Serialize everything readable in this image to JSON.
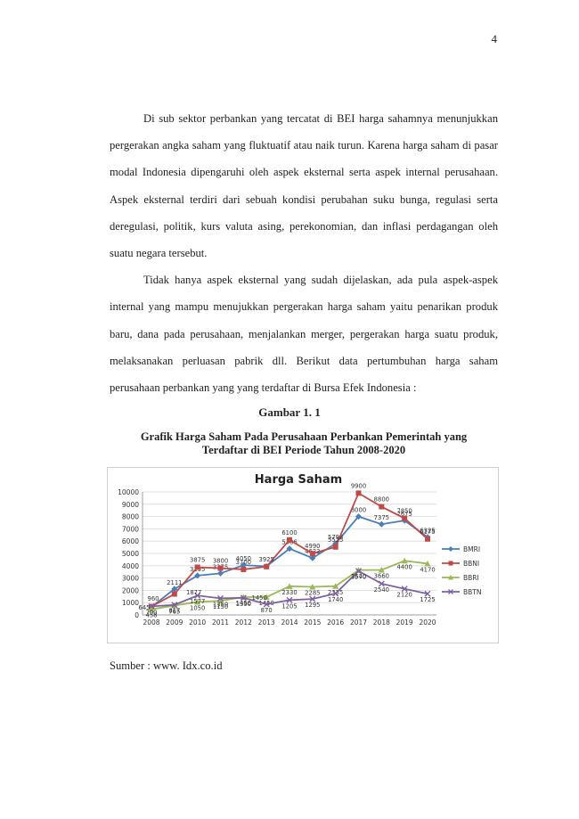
{
  "page_number": "4",
  "paragraphs": [
    "Di sub sektor perbankan yang tercatat di BEI harga sahamnya menunjukkan pergerakan angka saham yang fluktuatif atau naik turun. Karena harga saham di pasar modal Indonesia dipengaruhi oleh aspek eksternal serta aspek internal perusahaan. Aspek eksternal terdiri dari sebuah kondisi perubahan suku bunga, regulasi serta deregulasi, politik, kurs valuta asing, perekonomian, dan inflasi perdagangan oleh suatu negara tersebut.",
    "Tidak hanya aspek eksternal yang sudah dijelaskan, ada pula aspek-aspek internal yang mampu menujukkan pergerakan harga saham yaitu penarikan produk baru, dana pada perusahaan, menjalankan merger, pergerakan harga suatu produk, melaksanakan perluasan pabrik dll. Berikut data pertumbuhan harga saham perusahaan perbankan yang yang terdaftar di Bursa Efek Indonesia :"
  ],
  "figure_label": "Gambar 1. 1",
  "figure_caption_line1": "Grafik Harga Saham Pada Perusahaan Perbankan Pemerintah yang",
  "figure_caption_line2": "Terdaftar di BEI Periode Tahun 2008-2020",
  "source": "Sumber : www. Idx.co.id",
  "chart_data": {
    "type": "line",
    "title": "Harga Saham",
    "x": [
      "2008",
      "2009",
      "2010",
      "2011",
      "2012",
      "2013",
      "2014",
      "2015",
      "2016",
      "2017",
      "2018",
      "2019",
      "2020"
    ],
    "yticks": [
      0,
      1000,
      2000,
      3000,
      4000,
      5000,
      6000,
      7000,
      8000,
      9000,
      10000
    ],
    "ylim": [
      0,
      10000
    ],
    "grid": true,
    "legend": "right",
    "series": [
      {
        "name": "BMRI",
        "color": "#4a7ebb",
        "marker": "diamond",
        "values": [
          645,
          2111,
          3195,
          3375,
          4050,
          3950,
          5386,
          4623,
          5798,
          8000,
          7375,
          7675,
          6325
        ],
        "labels": [
          "",
          "2111",
          "3195",
          "3375",
          "4050",
          "",
          "5386",
          "4623",
          "5798",
          "8000",
          "7375",
          "7675",
          "6325"
        ]
      },
      {
        "name": "BBNI",
        "color": "#be4b48",
        "marker": "square",
        "values": [
          680,
          1700,
          3875,
          3800,
          3700,
          3925,
          6100,
          4990,
          5525,
          9900,
          8800,
          7850,
          6175
        ],
        "labels": [
          "",
          "",
          "3875",
          "3800",
          "3700",
          "3925",
          "6100",
          "4990",
          "5525",
          "9900",
          "8800",
          "7850",
          "6175"
        ]
      },
      {
        "name": "BBRI",
        "color": "#98b954",
        "marker": "triangle",
        "values": [
          458,
          765,
          1050,
          1150,
          1450,
          1450,
          2330,
          2285,
          2335,
          3640,
          3660,
          4400,
          4170
        ],
        "labels": [
          "458",
          "765",
          "1050",
          "1150",
          "1450",
          "1450",
          "2330",
          "2285",
          "2335",
          "3640",
          "3660",
          "4400",
          "4170"
        ]
      },
      {
        "name": "BBTN",
        "color": "#7d60a0",
        "marker": "x",
        "values": [
          700,
          817,
          1577,
          1350,
          1390,
          870,
          1205,
          1295,
          1740,
          3570,
          2540,
          2120,
          1725
        ],
        "labels": [
          "700",
          "817",
          "1577",
          "1350",
          "1390",
          "870",
          "1205",
          "1295",
          "1740",
          "3570",
          "2540",
          "2120",
          "1725"
        ]
      }
    ],
    "extra_labels": [
      "645",
      "960",
      "1877",
      "1450"
    ]
  }
}
